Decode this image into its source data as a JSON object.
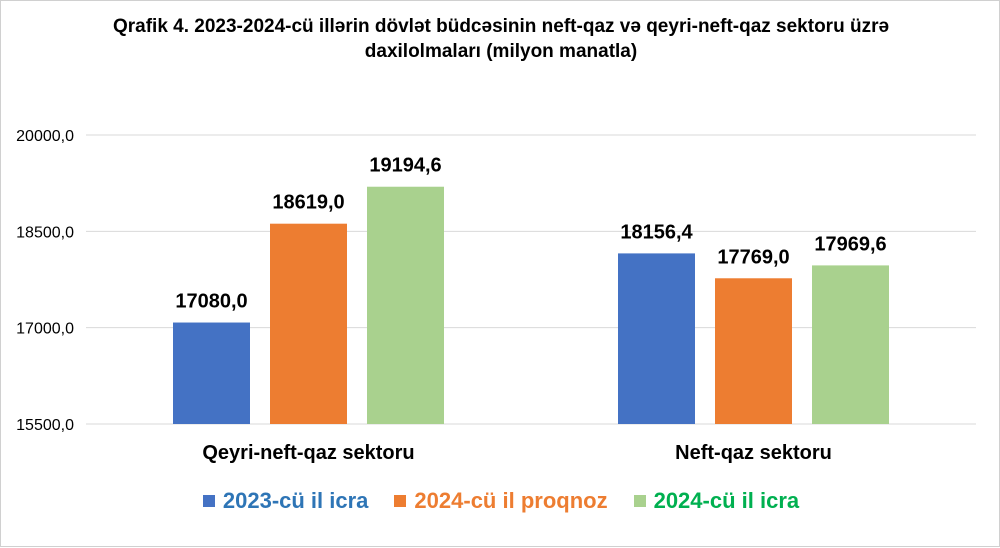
{
  "chart_data": {
    "type": "bar",
    "title": "Qrafik 4. 2023-2024-cü illərin dövlət büdcəsinin neft-qaz və qeyri-neft-qaz sektoru üzrə daxilolmaları (milyon manatla)",
    "categories": [
      "Qeyri-neft-qaz sektoru",
      "Neft-qaz sektoru"
    ],
    "series": [
      {
        "name": "2023-cü il icra",
        "values": [
          17080.0,
          18156.4
        ],
        "labels": [
          "17080,0",
          "18156,4"
        ],
        "color": "#4472c4",
        "legend_color": "#2e75b6"
      },
      {
        "name": "2024-cü il proqnoz",
        "values": [
          18619.0,
          17769.0
        ],
        "labels": [
          "18619,0",
          "17769,0"
        ],
        "color": "#ed7d31",
        "legend_color": "#ed7d31"
      },
      {
        "name": "2024-cü il icra",
        "values": [
          19194.6,
          17969.6
        ],
        "labels": [
          "19194,6",
          "17969,6"
        ],
        "color": "#a9d18e",
        "legend_color": "#00b050"
      }
    ],
    "yticks": [
      "15500,0",
      "17000,0",
      "18500,0",
      "20000,0"
    ],
    "ytick_values": [
      15500,
      17000,
      18500,
      20000
    ],
    "ylim": [
      15500,
      20000
    ],
    "grid": true,
    "legend_position": "bottom",
    "xlabel": "",
    "ylabel": ""
  }
}
